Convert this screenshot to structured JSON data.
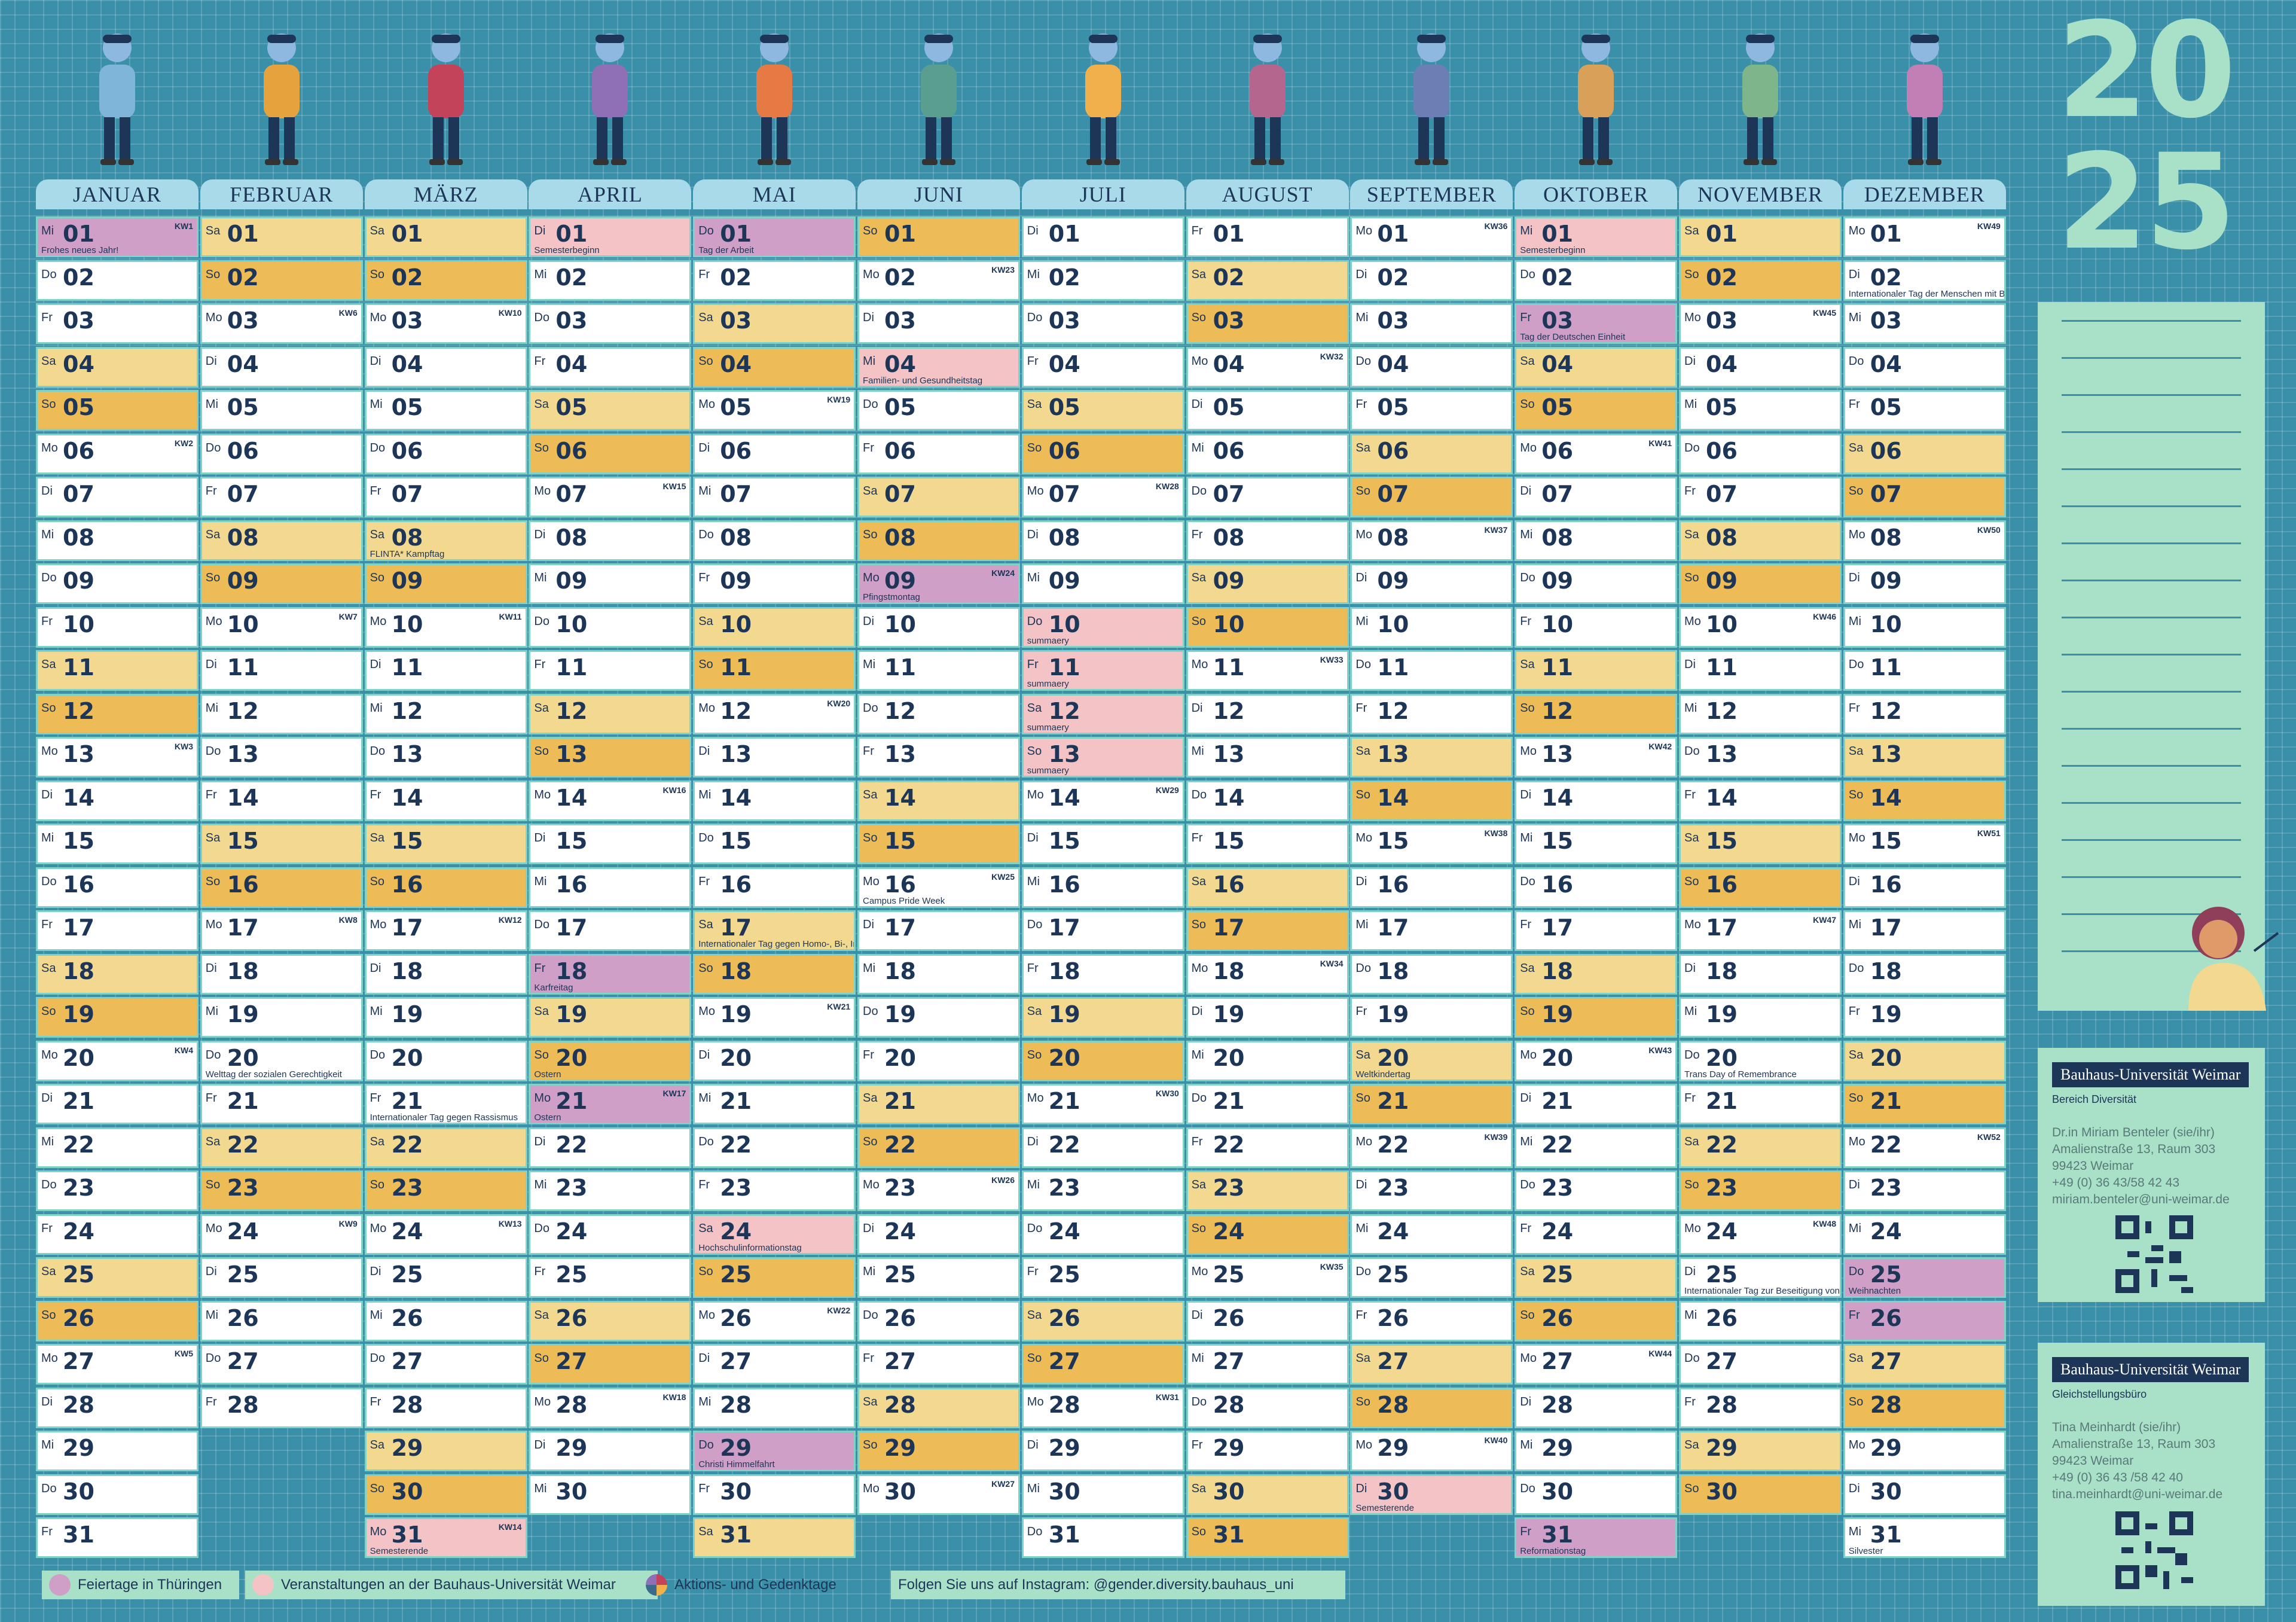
{
  "year_digits": [
    "20",
    "25"
  ],
  "months": [
    {
      "name": "JANUAR",
      "start": 2,
      "len": 31,
      "kw": {
        "1": "KW1",
        "6": "KW2",
        "13": "KW3",
        "20": "KW4",
        "27": "KW5"
      },
      "special": {
        "1": {
          "t": "hol",
          "n": "Frohes neues Jahr!"
        }
      }
    },
    {
      "name": "FEBRUAR",
      "start": 5,
      "len": 28,
      "kw": {
        "3": "KW6",
        "10": "KW7",
        "17": "KW8",
        "24": "KW9"
      },
      "special": {
        "20": {
          "t": "",
          "n": "Welttag der sozialen Gerechtigkeit"
        }
      }
    },
    {
      "name": "MÄRZ",
      "start": 5,
      "len": 31,
      "kw": {
        "3": "KW10",
        "10": "KW11",
        "17": "KW12",
        "24": "KW13",
        "31": "KW14"
      },
      "special": {
        "8": {
          "t": "",
          "n": "FLINTA* Kampftag"
        },
        "21": {
          "t": "",
          "n": "Internationaler Tag gegen Rassismus"
        },
        "31": {
          "t": "evt",
          "n": "Semesterende"
        }
      }
    },
    {
      "name": "APRIL",
      "start": 1,
      "len": 30,
      "kw": {
        "7": "KW15",
        "14": "KW16",
        "21": "KW17",
        "28": "KW18"
      },
      "special": {
        "1": {
          "t": "evt",
          "n": "Semesterbeginn"
        },
        "18": {
          "t": "hol",
          "n": "Karfreitag"
        },
        "20": {
          "t": "",
          "n": "Ostern"
        },
        "21": {
          "t": "hol",
          "n": "Ostern"
        }
      }
    },
    {
      "name": "MAI",
      "start": 3,
      "len": 31,
      "kw": {
        "5": "KW19",
        "12": "KW20",
        "19": "KW21",
        "26": "KW22"
      },
      "special": {
        "1": {
          "t": "hol",
          "n": "Tag der Arbeit"
        },
        "17": {
          "t": "",
          "n": "Internationaler Tag gegen Homo-, Bi-, Inter- und Transfeindlichkeit"
        },
        "24": {
          "t": "evt",
          "n": "Hochschulinformationstag"
        },
        "29": {
          "t": "hol",
          "n": "Christi Himmelfahrt"
        }
      }
    },
    {
      "name": "JUNI",
      "start": 6,
      "len": 30,
      "kw": {
        "2": "KW23",
        "9": "KW24",
        "16": "KW25",
        "23": "KW26",
        "30": "KW27"
      },
      "special": {
        "4": {
          "t": "evt",
          "n": "Familien- und Gesundheitstag"
        },
        "9": {
          "t": "hol",
          "n": "Pfingstmontag"
        },
        "16": {
          "t": "",
          "n": "Campus Pride Week"
        }
      }
    },
    {
      "name": "JULI",
      "start": 1,
      "len": 31,
      "kw": {
        "7": "KW28",
        "14": "KW29",
        "21": "KW30",
        "28": "KW31"
      },
      "special": {
        "10": {
          "t": "evt",
          "n": "summaery"
        },
        "11": {
          "t": "evt",
          "n": "summaery"
        },
        "12": {
          "t": "evt",
          "n": "summaery"
        },
        "13": {
          "t": "evt",
          "n": "summaery"
        }
      }
    },
    {
      "name": "AUGUST",
      "start": 4,
      "len": 31,
      "kw": {
        "4": "KW32",
        "11": "KW33",
        "18": "KW34",
        "25": "KW35"
      },
      "special": {}
    },
    {
      "name": "SEPTEMBER",
      "start": 0,
      "len": 30,
      "kw": {
        "1": "KW36",
        "8": "KW37",
        "15": "KW38",
        "22": "KW39",
        "29": "KW40"
      },
      "special": {
        "20": {
          "t": "",
          "n": "Weltkindertag"
        },
        "30": {
          "t": "evt",
          "n": "Semesterende"
        }
      }
    },
    {
      "name": "OKTOBER",
      "start": 2,
      "len": 31,
      "kw": {
        "6": "KW41",
        "13": "KW42",
        "20": "KW43",
        "27": "KW44"
      },
      "special": {
        "1": {
          "t": "evt",
          "n": "Semesterbeginn"
        },
        "3": {
          "t": "hol",
          "n": "Tag der Deutschen Einheit"
        },
        "31": {
          "t": "hol",
          "n": "Reformationstag"
        }
      }
    },
    {
      "name": "NOVEMBER",
      "start": 5,
      "len": 30,
      "kw": {
        "3": "KW45",
        "10": "KW46",
        "17": "KW47",
        "24": "KW48"
      },
      "special": {
        "20": {
          "t": "",
          "n": "Trans Day of Remembrance"
        },
        "25": {
          "t": "",
          "n": "Internationaler Tag zur Beseitigung von Gewalt gegen Frauen"
        }
      }
    },
    {
      "name": "DEZEMBER",
      "start": 0,
      "len": 31,
      "kw": {
        "1": "KW49",
        "8": "KW50",
        "15": "KW51",
        "22": "KW52"
      },
      "special": {
        "2": {
          "t": "",
          "n": "Internationaler Tag der Menschen mit Behinderung"
        },
        "25": {
          "t": "hol",
          "n": "Weihnachten"
        },
        "26": {
          "t": "hol",
          "n": ""
        },
        "31": {
          "t": "",
          "n": "Silvester"
        }
      }
    }
  ],
  "weekday_abbr": [
    "Mo",
    "Di",
    "Mi",
    "Do",
    "Fr",
    "Sa",
    "So"
  ],
  "contact_1": {
    "title": "Bauhaus-Universität Weimar",
    "subtitle": "Bereich Diversität",
    "lines": [
      "Dr.in Miriam Benteler (sie/ihr)",
      "Amalienstraße 13, Raum 303",
      "99423 Weimar",
      "+49 (0) 36 43/58 42 43",
      "miriam.benteler@uni-weimar.de"
    ]
  },
  "contact_2": {
    "title": "Bauhaus-Universität Weimar",
    "subtitle": "Gleichstellungsbüro",
    "lines": [
      "Tina Meinhardt (sie/ihr)",
      "Amalienstraße 13, Raum 303",
      "99423 Weimar",
      "+49 (0) 36 43 /58 42 40",
      "tina.meinhardt@uni-weimar.de"
    ]
  },
  "legend": {
    "holiday": "Feiertage in Thüringen",
    "events": "Veranstaltungen an der Bauhaus-Universität Weimar",
    "action": "Aktions- und Gedenktage",
    "instagram": "Folgen Sie uns auf Instagram: @gender.diversity.bauhaus_uni"
  },
  "colors": {
    "holiday": "#cf9fc7",
    "event": "#f4c3c5",
    "saturday": "#f3d98f",
    "sunday": "#eebc57",
    "background": "#3a8fa9",
    "mint": "#a8e0c8"
  }
}
